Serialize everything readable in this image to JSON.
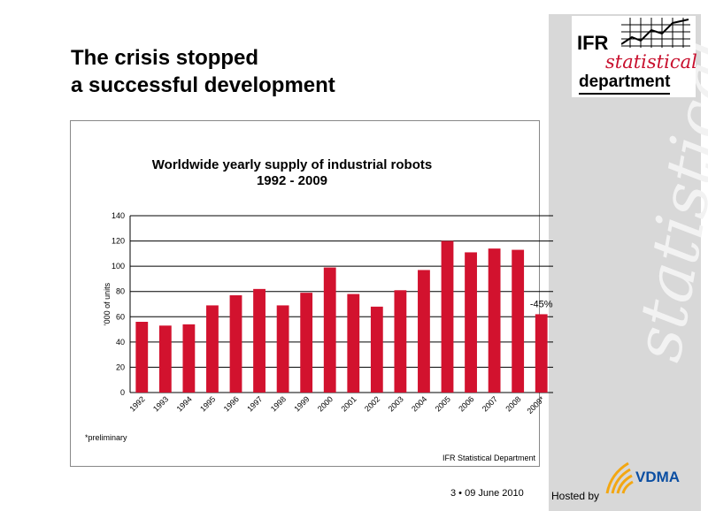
{
  "slide": {
    "title_line1": "The crisis stopped",
    "title_line2": "a successful development",
    "footer": "3 •  09 June 2010",
    "hosted_by": "Hosted by"
  },
  "logo": {
    "ifr": "IFR",
    "statistical": "statistical",
    "department": "department",
    "watermark": "statistical",
    "accent_color": "#c8102e"
  },
  "vdma": {
    "text": "VDMA",
    "color": "#0b4ea2",
    "fan_color": "#f3a712"
  },
  "chart_data": {
    "type": "bar",
    "title_line1": "Worldwide yearly supply of industrial robots",
    "title_line2": "1992 - 2009",
    "ylabel": "'000 of units",
    "ylim": [
      0,
      140
    ],
    "yticks": [
      0,
      20,
      40,
      60,
      80,
      100,
      120,
      140
    ],
    "grid": true,
    "bar_color": "#d2122e",
    "categories": [
      "1992",
      "1993",
      "1994",
      "1995",
      "1996",
      "1997",
      "1998",
      "1999",
      "2000",
      "2001",
      "2002",
      "2003",
      "2004",
      "2005",
      "2006",
      "2007",
      "2008",
      "2009*"
    ],
    "values": [
      56,
      53,
      54,
      69,
      77,
      82,
      69,
      79,
      99,
      78,
      68,
      81,
      97,
      120,
      111,
      114,
      113,
      62
    ],
    "annotation": {
      "category": "2009*",
      "text": "-45%"
    },
    "footnote": "*preliminary",
    "source": "IFR Statistical Department"
  }
}
